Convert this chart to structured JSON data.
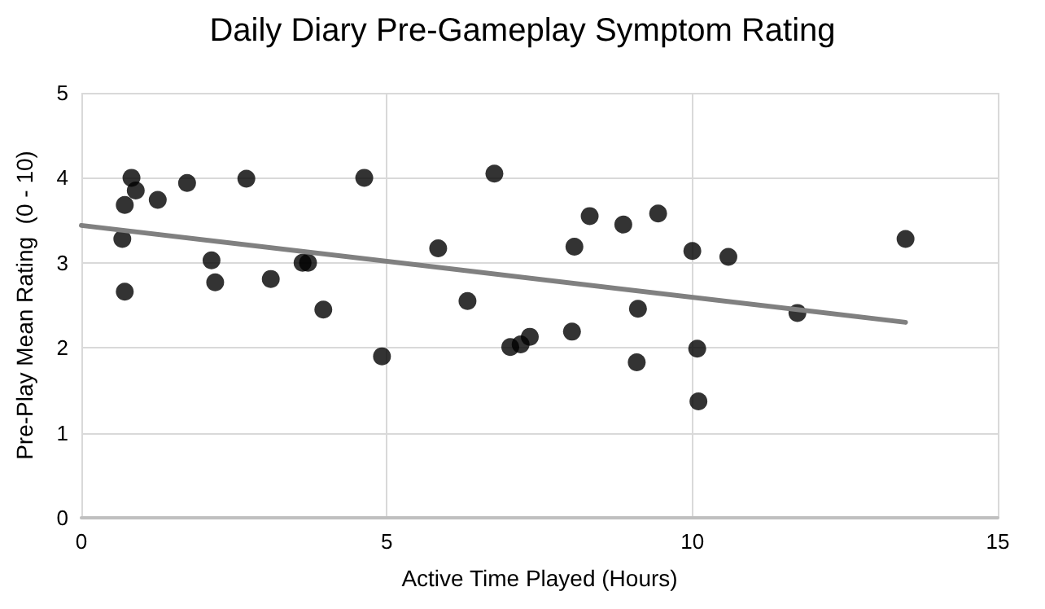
{
  "chart_data": {
    "type": "scatter",
    "title": "Daily Diary Pre-Gameplay Symptom Rating",
    "xlabel": "Active Time Played (Hours)",
    "ylabel": "Pre-Play Mean Rating  (0 - 10)",
    "xlim": [
      0,
      15
    ],
    "xticks": [
      0,
      5,
      10,
      15
    ],
    "ylim": [
      0,
      5
    ],
    "yticks": [
      0,
      1,
      2,
      3,
      4,
      5
    ],
    "grid": true,
    "series": [
      {
        "color": "#000000",
        "marker": "circle",
        "x": [
          0.82,
          0.89,
          0.71,
          0.67,
          0.71,
          1.25,
          1.73,
          2.7,
          2.13,
          2.19,
          3.1,
          3.62,
          3.71,
          3.96,
          4.63,
          4.92,
          5.84,
          6.32,
          6.76,
          7.02,
          7.19,
          7.34,
          8.03,
          8.07,
          8.32,
          8.87,
          9.44,
          9.11,
          9.09,
          10.0,
          10.08,
          10.1,
          10.59,
          11.72,
          13.49
        ],
        "values": [
          4.0,
          3.85,
          3.68,
          3.28,
          2.66,
          3.74,
          3.94,
          3.99,
          3.03,
          2.77,
          2.81,
          3.0,
          3.0,
          2.45,
          4.0,
          1.9,
          3.17,
          2.55,
          4.05,
          2.01,
          2.04,
          2.13,
          2.19,
          3.19,
          3.55,
          3.45,
          3.58,
          2.46,
          1.83,
          3.14,
          1.99,
          1.37,
          3.07,
          2.41,
          3.28
        ]
      },
      {
        "type": "line",
        "color": "#808080",
        "marker": "none",
        "line_style": "solid",
        "x": [
          0,
          13.49
        ],
        "values": [
          3.44,
          2.3
        ]
      }
    ]
  }
}
